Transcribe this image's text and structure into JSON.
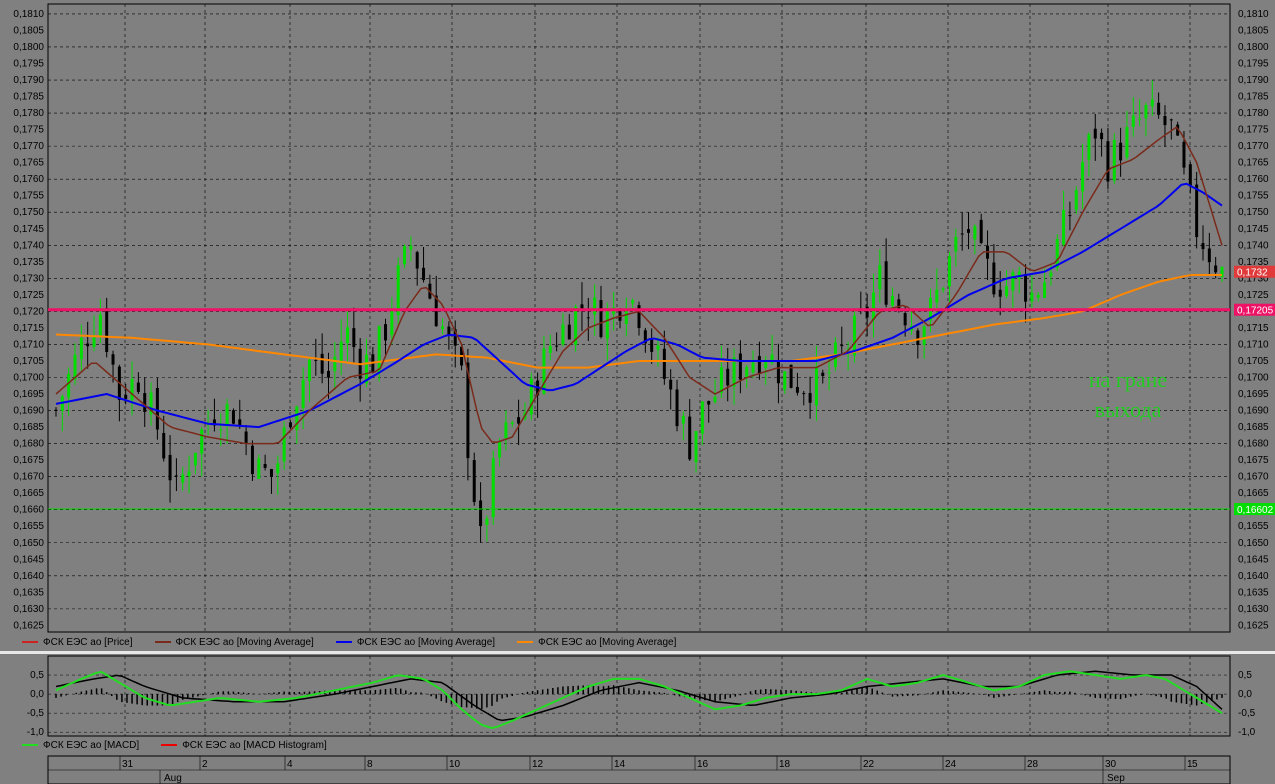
{
  "annotation": {
    "line1": "на гране",
    "line2": "выхода"
  },
  "colors": {
    "bull": "#00dd00",
    "bear": "#000000",
    "ma_fast": "#7a2a1a",
    "ma_mid": "#0000ee",
    "ma_slow": "#ff8800",
    "resistance": "#ee1166",
    "support": "#00dd00",
    "macd": "#22dd22",
    "macd_signal": "#000000",
    "hist": "#000000"
  },
  "legend_main": [
    {
      "label": "ФСК ЕЭС ао [Price]",
      "color": "#cc2222"
    },
    {
      "label": "ФСК ЕЭС ао [Moving Average]",
      "color": "#7a2a1a"
    },
    {
      "label": "ФСК ЕЭС ао [Moving Average]",
      "color": "#0000ee"
    },
    {
      "label": "ФСК ЕЭС ао [Moving Average]",
      "color": "#ff8800"
    }
  ],
  "legend_macd": [
    {
      "label": "ФСК ЕЭС ао [MACD]",
      "color": "#22dd22"
    },
    {
      "label": "ФСК ЕЭС ао [MACD Histogram]",
      "color": "#ee0000"
    }
  ],
  "chart_data": [
    {
      "type": "candlestick",
      "title": "",
      "ylim": [
        0.1623,
        0.1813
      ],
      "yticks": [
        "0,1625",
        "0,1630",
        "0,1635",
        "0,1640",
        "0,1645",
        "0,1650",
        "0,1655",
        "0,1660",
        "0,1665",
        "0,1670",
        "0,1675",
        "0,1680",
        "0,1685",
        "0,1690",
        "0,1695",
        "0,1700",
        "0,1705",
        "0,1710",
        "0,1715",
        "0,1720",
        "0,1725",
        "0,1730",
        "0,1735",
        "0,1740",
        "0,1745",
        "0,1750",
        "0,1755",
        "0,1760",
        "0,1765",
        "0,1770",
        "0,1775",
        "0,1780",
        "0,1785",
        "0,1790",
        "0,1795",
        "0,1800",
        "0,1805",
        "0,1810"
      ],
      "x_day_labels": [
        "31",
        "2",
        "4",
        "8",
        "10",
        "12",
        "14",
        "16",
        "18",
        "22",
        "24",
        "28",
        "30",
        "1",
        "5"
      ],
      "x_month_labels": [
        "Aug",
        "Sep"
      ],
      "price_label": "0,1732",
      "resistance_label": "0,17205",
      "support_label": "0,16602",
      "resistance": 0.17205,
      "support": 0.16602,
      "last_price": 0.1732,
      "price_path": [
        [
          0,
          0.169
        ],
        [
          20,
          0.171
        ],
        [
          35,
          0.172
        ],
        [
          50,
          0.1695
        ],
        [
          65,
          0.17
        ],
        [
          80,
          0.1685
        ],
        [
          95,
          0.1665
        ],
        [
          110,
          0.168
        ],
        [
          125,
          0.169
        ],
        [
          140,
          0.169
        ],
        [
          150,
          0.168
        ],
        [
          160,
          0.1672
        ],
        [
          172,
          0.167
        ],
        [
          185,
          0.169
        ],
        [
          200,
          0.1705
        ],
        [
          215,
          0.17
        ],
        [
          228,
          0.1715
        ],
        [
          240,
          0.1705
        ],
        [
          250,
          0.1705
        ],
        [
          260,
          0.1715
        ],
        [
          270,
          0.173
        ],
        [
          280,
          0.174
        ],
        [
          290,
          0.173
        ],
        [
          300,
          0.172
        ],
        [
          310,
          0.171
        ],
        [
          320,
          0.17
        ],
        [
          325,
          0.168
        ],
        [
          330,
          0.1665
        ],
        [
          335,
          0.165
        ],
        [
          340,
          0.166
        ],
        [
          350,
          0.168
        ],
        [
          360,
          0.1685
        ],
        [
          370,
          0.169
        ],
        [
          380,
          0.17
        ],
        [
          390,
          0.171
        ],
        [
          400,
          0.1715
        ],
        [
          410,
          0.172
        ],
        [
          420,
          0.1722
        ],
        [
          430,
          0.1718
        ],
        [
          440,
          0.172
        ],
        [
          450,
          0.1726
        ],
        [
          460,
          0.172
        ],
        [
          470,
          0.171
        ],
        [
          480,
          0.17
        ],
        [
          490,
          0.169
        ],
        [
          500,
          0.168
        ],
        [
          510,
          0.169
        ],
        [
          520,
          0.1695
        ],
        [
          530,
          0.17
        ],
        [
          545,
          0.1705
        ],
        [
          560,
          0.1708
        ],
        [
          575,
          0.17
        ],
        [
          590,
          0.1698
        ],
        [
          605,
          0.1698
        ],
        [
          615,
          0.1705
        ],
        [
          625,
          0.171
        ],
        [
          640,
          0.172
        ],
        [
          650,
          0.173
        ],
        [
          660,
          0.1725
        ],
        [
          670,
          0.172
        ],
        [
          680,
          0.1715
        ],
        [
          690,
          0.172
        ],
        [
          700,
          0.173
        ],
        [
          710,
          0.174
        ],
        [
          720,
          0.1745
        ],
        [
          730,
          0.1735
        ],
        [
          740,
          0.173
        ],
        [
          750,
          0.1728
        ],
        [
          760,
          0.173
        ],
        [
          770,
          0.1725
        ],
        [
          780,
          0.173
        ],
        [
          790,
          0.174
        ],
        [
          800,
          0.175
        ],
        [
          810,
          0.1765
        ],
        [
          820,
          0.1775
        ],
        [
          830,
          0.1765
        ],
        [
          840,
          0.177
        ],
        [
          850,
          0.1775
        ],
        [
          860,
          0.178
        ],
        [
          870,
          0.1778
        ],
        [
          880,
          0.1775
        ],
        [
          890,
          0.176
        ],
        [
          900,
          0.1745
        ],
        [
          910,
          0.1738
        ],
        [
          920,
          0.1732
        ]
      ],
      "ma_fast": [
        [
          0,
          0.1695
        ],
        [
          30,
          0.1705
        ],
        [
          60,
          0.1695
        ],
        [
          90,
          0.1685
        ],
        [
          120,
          0.1682
        ],
        [
          150,
          0.168
        ],
        [
          175,
          0.168
        ],
        [
          200,
          0.169
        ],
        [
          230,
          0.17
        ],
        [
          255,
          0.1702
        ],
        [
          275,
          0.172
        ],
        [
          290,
          0.1728
        ],
        [
          305,
          0.1722
        ],
        [
          320,
          0.171
        ],
        [
          335,
          0.1685
        ],
        [
          345,
          0.168
        ],
        [
          360,
          0.1682
        ],
        [
          380,
          0.1695
        ],
        [
          400,
          0.1708
        ],
        [
          420,
          0.1715
        ],
        [
          440,
          0.1718
        ],
        [
          460,
          0.172
        ],
        [
          480,
          0.1712
        ],
        [
          500,
          0.17
        ],
        [
          520,
          0.1695
        ],
        [
          545,
          0.17
        ],
        [
          570,
          0.1703
        ],
        [
          600,
          0.1703
        ],
        [
          625,
          0.1708
        ],
        [
          650,
          0.172
        ],
        [
          670,
          0.1722
        ],
        [
          690,
          0.1715
        ],
        [
          710,
          0.1725
        ],
        [
          730,
          0.1738
        ],
        [
          750,
          0.1738
        ],
        [
          770,
          0.1732
        ],
        [
          790,
          0.1735
        ],
        [
          810,
          0.175
        ],
        [
          830,
          0.1763
        ],
        [
          850,
          0.1766
        ],
        [
          870,
          0.1772
        ],
        [
          885,
          0.1776
        ],
        [
          900,
          0.1765
        ],
        [
          920,
          0.174
        ]
      ],
      "ma_mid": [
        [
          0,
          0.1692
        ],
        [
          40,
          0.1695
        ],
        [
          80,
          0.169
        ],
        [
          120,
          0.1686
        ],
        [
          160,
          0.1685
        ],
        [
          200,
          0.169
        ],
        [
          240,
          0.1698
        ],
        [
          270,
          0.1705
        ],
        [
          290,
          0.171
        ],
        [
          310,
          0.1713
        ],
        [
          330,
          0.1712
        ],
        [
          350,
          0.1705
        ],
        [
          370,
          0.1698
        ],
        [
          390,
          0.1696
        ],
        [
          410,
          0.1698
        ],
        [
          430,
          0.1703
        ],
        [
          450,
          0.1708
        ],
        [
          470,
          0.1712
        ],
        [
          490,
          0.171
        ],
        [
          510,
          0.1706
        ],
        [
          540,
          0.1705
        ],
        [
          570,
          0.1705
        ],
        [
          600,
          0.1705
        ],
        [
          630,
          0.1708
        ],
        [
          660,
          0.1712
        ],
        [
          690,
          0.1718
        ],
        [
          720,
          0.1725
        ],
        [
          750,
          0.173
        ],
        [
          780,
          0.1732
        ],
        [
          810,
          0.1738
        ],
        [
          840,
          0.1745
        ],
        [
          870,
          0.1752
        ],
        [
          890,
          0.1759
        ],
        [
          905,
          0.1756
        ],
        [
          920,
          0.1752
        ]
      ],
      "ma_slow": [
        [
          0,
          0.1713
        ],
        [
          60,
          0.1712
        ],
        [
          120,
          0.171
        ],
        [
          180,
          0.1707
        ],
        [
          240,
          0.1704
        ],
        [
          300,
          0.1707
        ],
        [
          340,
          0.1706
        ],
        [
          380,
          0.1703
        ],
        [
          420,
          0.1703
        ],
        [
          460,
          0.1705
        ],
        [
          500,
          0.1705
        ],
        [
          540,
          0.1705
        ],
        [
          580,
          0.1705
        ],
        [
          620,
          0.1707
        ],
        [
          660,
          0.171
        ],
        [
          700,
          0.1713
        ],
        [
          740,
          0.1716
        ],
        [
          780,
          0.1718
        ],
        [
          810,
          0.172
        ],
        [
          840,
          0.1725
        ],
        [
          870,
          0.1729
        ],
        [
          895,
          0.1731
        ],
        [
          920,
          0.1731
        ]
      ]
    },
    {
      "type": "line",
      "title": "MACD",
      "ylim": [
        -1.1,
        1.0
      ],
      "yticks": [
        "0,5",
        "0,0",
        "-0,5",
        "-1,0"
      ],
      "macd": [
        [
          0,
          0.1
        ],
        [
          20,
          0.4
        ],
        [
          35,
          0.6
        ],
        [
          50,
          0.3
        ],
        [
          70,
          -0.1
        ],
        [
          90,
          -0.3
        ],
        [
          110,
          -0.2
        ],
        [
          130,
          -0.1
        ],
        [
          160,
          -0.2
        ],
        [
          190,
          -0.1
        ],
        [
          220,
          0.1
        ],
        [
          250,
          0.3
        ],
        [
          270,
          0.5
        ],
        [
          290,
          0.4
        ],
        [
          305,
          0.1
        ],
        [
          320,
          -0.4
        ],
        [
          335,
          -0.8
        ],
        [
          345,
          -0.9
        ],
        [
          360,
          -0.7
        ],
        [
          380,
          -0.4
        ],
        [
          400,
          -0.1
        ],
        [
          420,
          0.2
        ],
        [
          440,
          0.4
        ],
        [
          460,
          0.4
        ],
        [
          480,
          0.2
        ],
        [
          500,
          -0.1
        ],
        [
          520,
          -0.4
        ],
        [
          540,
          -0.3
        ],
        [
          560,
          -0.1
        ],
        [
          580,
          0.0
        ],
        [
          600,
          0.0
        ],
        [
          620,
          0.1
        ],
        [
          640,
          0.4
        ],
        [
          660,
          0.2
        ],
        [
          680,
          0.3
        ],
        [
          700,
          0.5
        ],
        [
          720,
          0.3
        ],
        [
          740,
          0.1
        ],
        [
          760,
          0.2
        ],
        [
          780,
          0.5
        ],
        [
          800,
          0.6
        ],
        [
          820,
          0.5
        ],
        [
          840,
          0.4
        ],
        [
          860,
          0.5
        ],
        [
          875,
          0.4
        ],
        [
          890,
          0.1
        ],
        [
          905,
          -0.2
        ],
        [
          920,
          -0.5
        ]
      ],
      "signal": [
        [
          0,
          0.2
        ],
        [
          30,
          0.4
        ],
        [
          50,
          0.5
        ],
        [
          70,
          0.2
        ],
        [
          100,
          -0.1
        ],
        [
          140,
          -0.2
        ],
        [
          180,
          -0.2
        ],
        [
          220,
          0.0
        ],
        [
          250,
          0.2
        ],
        [
          280,
          0.4
        ],
        [
          305,
          0.3
        ],
        [
          330,
          -0.3
        ],
        [
          350,
          -0.7
        ],
        [
          370,
          -0.6
        ],
        [
          400,
          -0.3
        ],
        [
          430,
          0.1
        ],
        [
          460,
          0.3
        ],
        [
          490,
          0.1
        ],
        [
          520,
          -0.2
        ],
        [
          550,
          -0.3
        ],
        [
          580,
          -0.1
        ],
        [
          610,
          0.0
        ],
        [
          640,
          0.2
        ],
        [
          670,
          0.3
        ],
        [
          700,
          0.4
        ],
        [
          730,
          0.2
        ],
        [
          760,
          0.2
        ],
        [
          790,
          0.5
        ],
        [
          820,
          0.6
        ],
        [
          850,
          0.5
        ],
        [
          880,
          0.5
        ],
        [
          900,
          0.2
        ],
        [
          920,
          -0.4
        ]
      ]
    }
  ]
}
